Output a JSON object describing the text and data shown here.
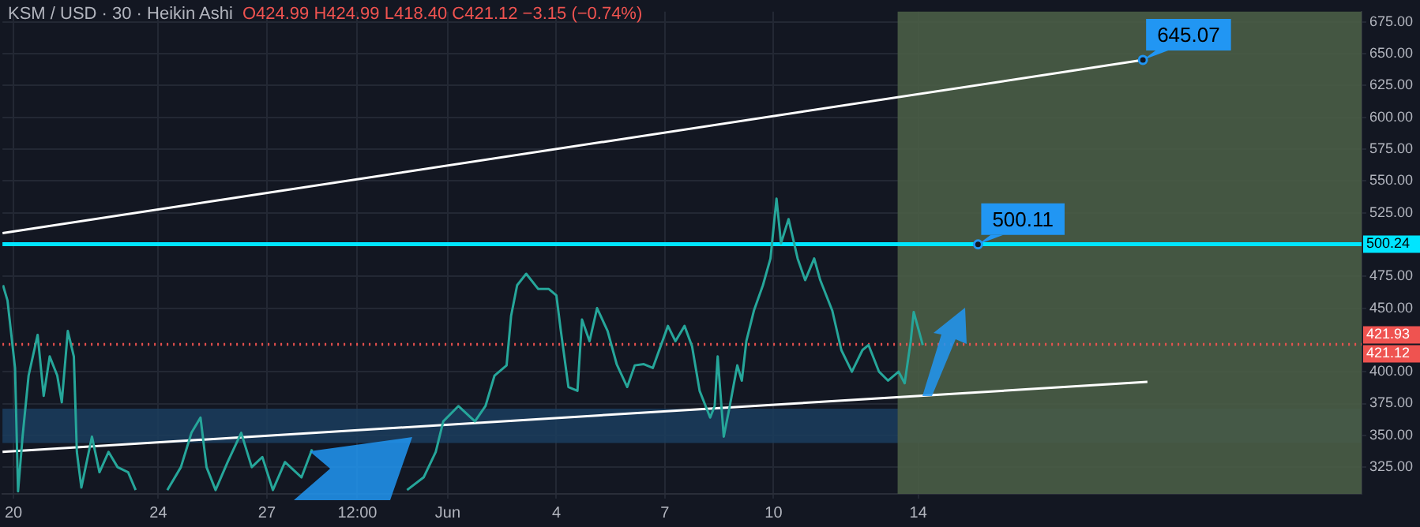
{
  "chart_data": {
    "type": "line",
    "title": "KSM / USD · 30 · Heikin Ashi",
    "subtitle": "O424.99 H424.99 L418.40 C421.12 −3.15 (−0.74%)",
    "xlim": [
      "--05-19T16:40",
      "--06-26T06:00"
    ],
    "xticks": [
      {
        "value": "--05-20",
        "label": "20"
      },
      {
        "value": "--05-24",
        "label": "24"
      },
      {
        "value": "--05-27",
        "label": "27"
      },
      {
        "value": "--05-29T12:00",
        "label": "12:00"
      },
      {
        "value": "--06-01",
        "label": "Jun"
      },
      {
        "value": "--06-04",
        "label": "4"
      },
      {
        "value": "--06-07",
        "label": "7"
      },
      {
        "value": "--06-10",
        "label": "10"
      },
      {
        "value": "--06-14",
        "label": "14"
      }
    ],
    "ylim": [
      304,
      683
    ],
    "yticks": [
      {
        "value": 325,
        "label": "325.00"
      },
      {
        "value": 350,
        "label": "350.00"
      },
      {
        "value": 375,
        "label": "375.00"
      },
      {
        "value": 400,
        "label": "400.00"
      },
      {
        "value": 450,
        "label": "450.00"
      },
      {
        "value": 475,
        "label": "475.00"
      },
      {
        "value": 525,
        "label": "525.00"
      },
      {
        "value": 550,
        "label": "550.00"
      },
      {
        "value": 575,
        "label": "575.00"
      },
      {
        "value": 600,
        "label": "600.00"
      },
      {
        "value": 625,
        "label": "625.00"
      },
      {
        "value": 650,
        "label": "650.00"
      },
      {
        "value": 675,
        "label": "675.00"
      }
    ],
    "grid": true,
    "series": [
      {
        "color": "#26a69a",
        "x": [
          "--05-19T17:00",
          "--05-19T20:00",
          "--05-20T01:00",
          "--05-20T03:00",
          "--05-20T06:00",
          "--05-20T10:00",
          "--05-20T16:00",
          "--05-20T20:00",
          "--05-21T00:00",
          "--05-21T05:00",
          "--05-21T08:00",
          "--05-21T12:00",
          "--05-21T16:00",
          "--05-21T18:00",
          "--05-21T21:00",
          "--05-22T04:00",
          "--05-22T09:00",
          "--05-22T15:00",
          "--05-22T21:00",
          "--05-23T04:00",
          "--05-23T09:00",
          "--05-23T20:00",
          "--05-24T06:00",
          "--05-24T15:00",
          "--05-24T22:00",
          "--05-25T04:00",
          "--05-25T08:00",
          "--05-25T14:00",
          "--05-25T22:00",
          "--05-26T07:00",
          "--05-26T14:00",
          "--05-26T21:00",
          "--05-27T04:00",
          "--05-27T12:00",
          "--05-27T23:00",
          "--05-28T06:00",
          "--05-29T12:00",
          "--05-30T21:00",
          "--05-31T08:00",
          "--05-31T16:00",
          "--05-31T21:00",
          "--06-01T07:00",
          "--06-01T18:00",
          "--06-02T01:00",
          "--06-02T07:00",
          "--06-02T15:00",
          "--06-02T18:00",
          "--06-02T22:00",
          "--06-03T04:00",
          "--06-03T12:00",
          "--06-03T19:00",
          "--06-04T00:00",
          "--06-04T03:00",
          "--06-04T08:00",
          "--06-04T14:00",
          "--06-04T17:00",
          "--06-04T22:00",
          "--06-05T03:00",
          "--06-05T10:00",
          "--06-05T16:00",
          "--06-05T23:00",
          "--06-06T04:00",
          "--06-06T10:00",
          "--06-06T16:00",
          "--06-07T02:00",
          "--06-07T07:00",
          "--06-07T13:00",
          "--06-07T18:00",
          "--06-07T23:00",
          "--06-08T03:00",
          "--06-08T06:00",
          "--06-08T09:00",
          "--06-08T11:00",
          "--06-08T15:00",
          "--06-08T19:00",
          "--06-09T00:00",
          "--06-09T03:00",
          "--06-09T06:00",
          "--06-09T11:00",
          "--06-09T17:00",
          "--06-09T22:00",
          "--06-10T02:00",
          "--06-10T05:00",
          "--06-10T10:00",
          "--06-10T16:00",
          "--06-10T21:00",
          "--06-11T03:00",
          "--06-11T07:00",
          "--06-11T15:00",
          "--06-11T21:00",
          "--06-12T04:00",
          "--06-12T11:00",
          "--06-12T15:00",
          "--06-12T22:00",
          "--06-13T04:00",
          "--06-13T11:00",
          "--06-13T15:00",
          "--06-13T19:00",
          "--06-13T21:00",
          "--06-14T03:00"
        ],
        "values": [
          468,
          456,
          403,
          306,
          349,
          397,
          429,
          381,
          412,
          397,
          376,
          432,
          412,
          337,
          309,
          349,
          321,
          337,
          325,
          321,
          307,
          null,
          307,
          325,
          352,
          364,
          325,
          307,
          329,
          352,
          325,
          333,
          307,
          329,
          317,
          339,
          null,
          307,
          317,
          337,
          361,
          373,
          361,
          373,
          397,
          405,
          444,
          468,
          477,
          465,
          465,
          460,
          432,
          388,
          385,
          441,
          424,
          450,
          432,
          406,
          388,
          405,
          406,
          403,
          436,
          424,
          436,
          420,
          385,
          373,
          364,
          373,
          412,
          349,
          373,
          405,
          393,
          424,
          448,
          468,
          489,
          536,
          501,
          520,
          489,
          472,
          489,
          472,
          448,
          417,
          400,
          417,
          421,
          400,
          393,
          400,
          391,
          424,
          447,
          421
        ]
      },
      {
        "color": "#ffffff",
        "x": [
          "--05-19T16:40",
          "--06-20T05:00"
        ],
        "values": [
          509,
          645
        ]
      },
      {
        "color": "#ffffff",
        "x": [
          "--05-19T16:40",
          "--06-20T08:00"
        ],
        "values": [
          337,
          392
        ]
      }
    ],
    "ref_lines": [
      {
        "axis": "y",
        "value": 500.24,
        "label": "500.24",
        "color": "#00e5ff",
        "line_style": "solid"
      },
      {
        "axis": "y",
        "value": 421.93,
        "label": "421.93",
        "color": "#ef5350",
        "line_style": "dotted"
      },
      {
        "axis": "y",
        "value": 421.12,
        "label": "421.12",
        "color": "#ef5350",
        "line_style": "dotted"
      }
    ],
    "bands": [
      {
        "axis": "y",
        "from": 344,
        "to": 371,
        "color": "#1b3d5e"
      },
      {
        "axis": "x",
        "from": "--06-13T10:20",
        "to": "--06-26T06:00",
        "color": "#4a5d46"
      }
    ],
    "annotations": [
      {
        "text": "645.07",
        "x": "--06-20T05:00",
        "y": 645.07
      },
      {
        "text": "500.11",
        "x": "--06-15T15:40",
        "y": 500.11
      }
    ]
  }
}
